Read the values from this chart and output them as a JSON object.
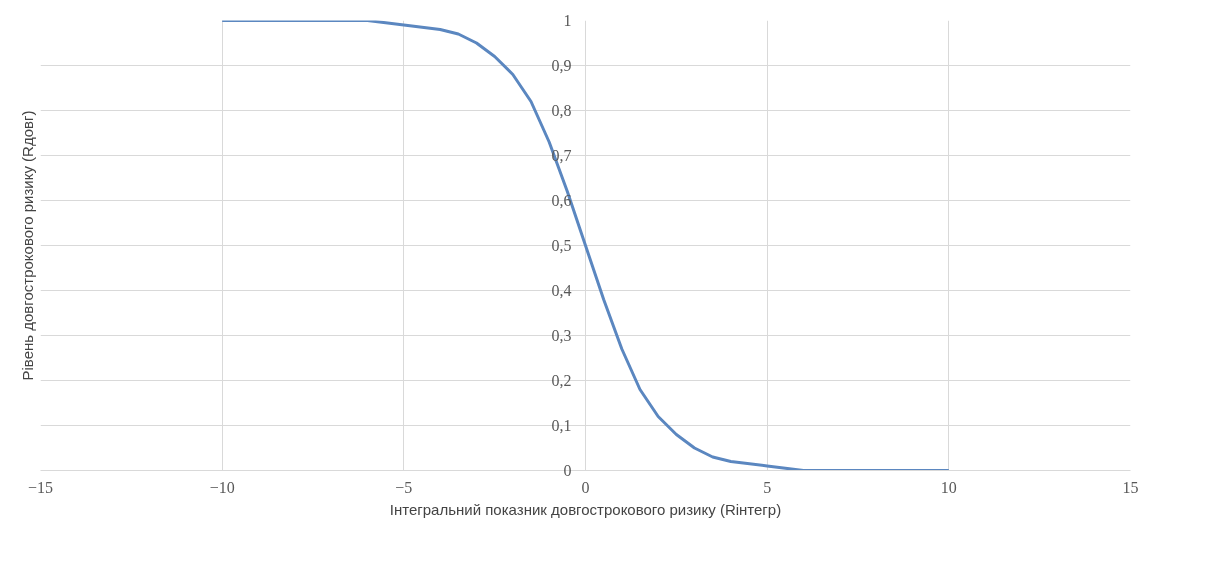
{
  "chart_data": {
    "type": "line",
    "xlabel": "Інтегральний показник довгострокового ризику (Rінтегр)",
    "ylabel": "Рівень довгострокового ризику (Rдовг)",
    "x": [
      -10,
      -8,
      -6,
      -5,
      -4,
      -3.5,
      -3,
      -2.5,
      -2,
      -1.5,
      -1,
      -0.5,
      0,
      0.5,
      1,
      1.5,
      2,
      2.5,
      3,
      3.5,
      4,
      5,
      6,
      8,
      10
    ],
    "series": [
      {
        "color": "#5b87c0",
        "values": [
          1,
          1,
          1,
          0.99,
          0.98,
          0.97,
          0.95,
          0.92,
          0.88,
          0.82,
          0.73,
          0.62,
          0.5,
          0.38,
          0.27,
          0.18,
          0.12,
          0.08,
          0.05,
          0.03,
          0.02,
          0.01,
          0,
          0,
          0
        ]
      }
    ],
    "xlim": [
      -15,
      15
    ],
    "xticks": [
      -15,
      -10,
      -5,
      0,
      5,
      10,
      15
    ],
    "ylim": [
      0,
      1
    ],
    "yticks": [
      0,
      {
        "value": 0.1,
        "label": "0,1"
      },
      {
        "value": 0.2,
        "label": "0,2"
      },
      {
        "value": 0.3,
        "label": "0,3"
      },
      {
        "value": 0.4,
        "label": "0,4"
      },
      {
        "value": 0.5,
        "label": "0,5"
      },
      {
        "value": 0.6,
        "label": "0,6"
      },
      {
        "value": 0.7,
        "label": "0,7"
      },
      {
        "value": 0.8,
        "label": "0,8"
      },
      {
        "value": 0.9,
        "label": "0,9"
      },
      1
    ],
    "grid": true,
    "marker": "none",
    "line_style": "solid"
  }
}
